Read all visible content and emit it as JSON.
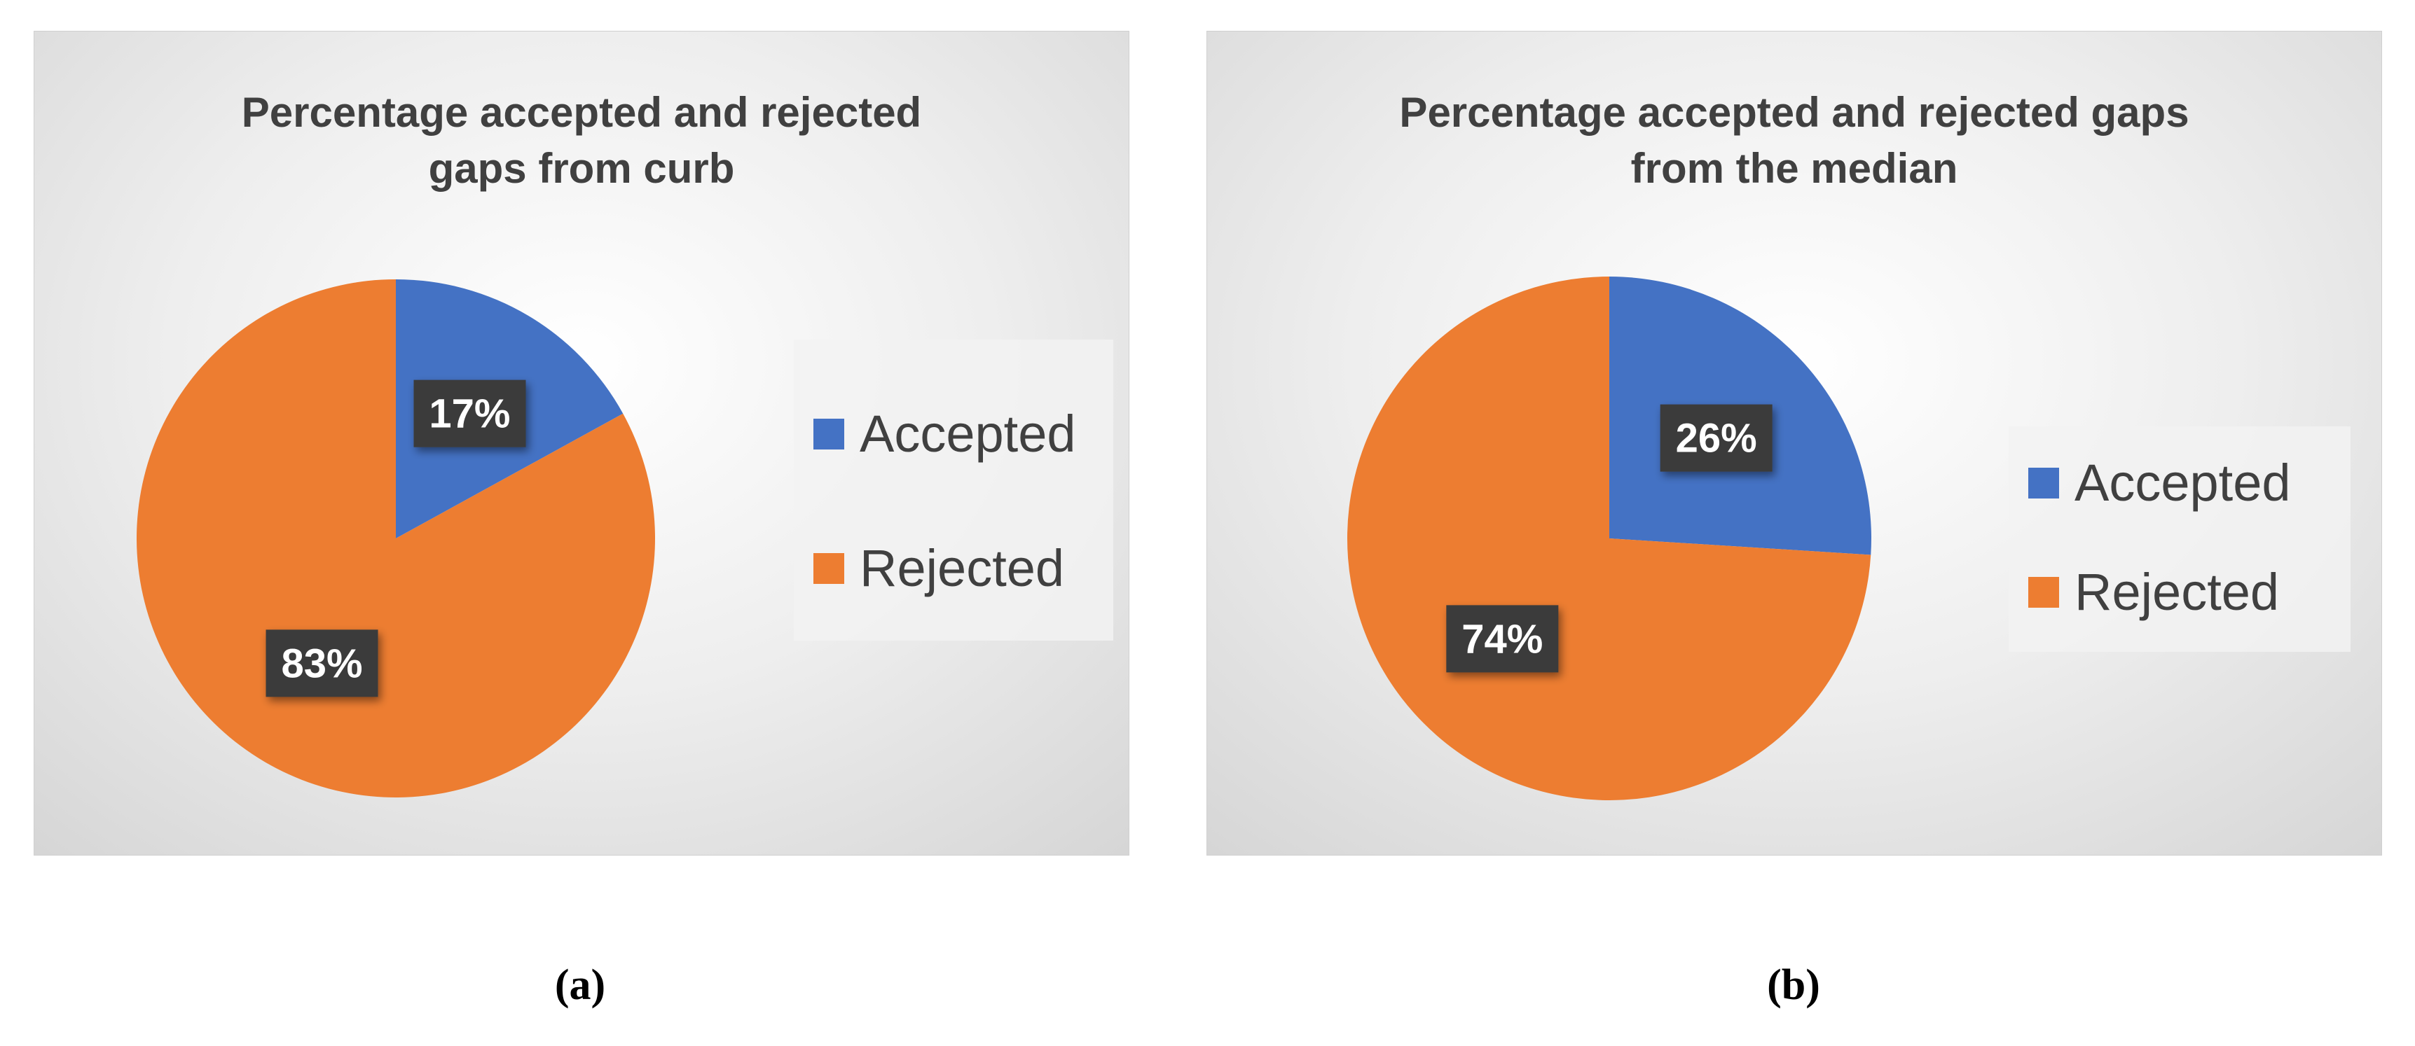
{
  "colors": {
    "accepted": "#4472C4",
    "rejected": "#ED7D31",
    "label_bg": "#3a3a3a",
    "label_text": "#FFFFFF"
  },
  "chart_data": [
    {
      "type": "pie",
      "title_lines": [
        "Percentage accepted and rejected",
        "gaps from curb"
      ],
      "categories": [
        "Accepted",
        "Rejected"
      ],
      "values": [
        17,
        83
      ],
      "data_labels": [
        "17%",
        "83%"
      ],
      "legend": "right",
      "caption": "(a)"
    },
    {
      "type": "pie",
      "title_lines": [
        "Percentage accepted and rejected gaps",
        "from the median"
      ],
      "categories": [
        "Accepted",
        "Rejected"
      ],
      "values": [
        26,
        74
      ],
      "data_labels": [
        "26%",
        "74%"
      ],
      "legend": "right",
      "caption": "(b)"
    }
  ]
}
